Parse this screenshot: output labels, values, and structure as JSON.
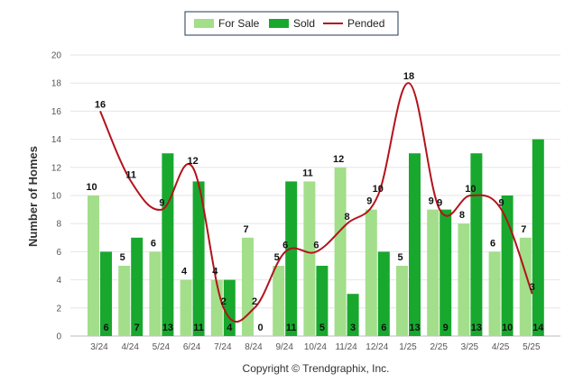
{
  "chart_data": {
    "type": "bar",
    "categories": [
      "3/24",
      "4/24",
      "5/24",
      "6/24",
      "7/24",
      "8/24",
      "9/24",
      "10/24",
      "11/24",
      "12/24",
      "1/25",
      "2/25",
      "3/25",
      "4/25",
      "5/25"
    ],
    "series": [
      {
        "name": "For Sale",
        "type": "bar",
        "color": "#a3de8b",
        "values": [
          10,
          5,
          6,
          4,
          4,
          7,
          5,
          11,
          12,
          9,
          5,
          9,
          8,
          6,
          7
        ]
      },
      {
        "name": "Sold",
        "type": "bar",
        "color": "#18a82e",
        "values": [
          6,
          7,
          13,
          11,
          4,
          0,
          11,
          5,
          3,
          6,
          13,
          9,
          13,
          10,
          14
        ]
      },
      {
        "name": "Pended",
        "type": "line",
        "color": "#b3131b",
        "values": [
          16,
          11,
          9,
          12,
          2,
          2,
          6,
          6,
          8,
          10,
          18,
          9,
          10,
          9,
          3
        ]
      }
    ],
    "ylabel": "Number of Homes",
    "xlabel": "",
    "ylim": [
      0,
      20
    ],
    "yticks": [
      0,
      2,
      4,
      6,
      8,
      10,
      12,
      14,
      16,
      18,
      20
    ],
    "grid": true,
    "legend": "top-center"
  },
  "footer": {
    "copyright": "Copyright © Trendgraphix, Inc."
  }
}
